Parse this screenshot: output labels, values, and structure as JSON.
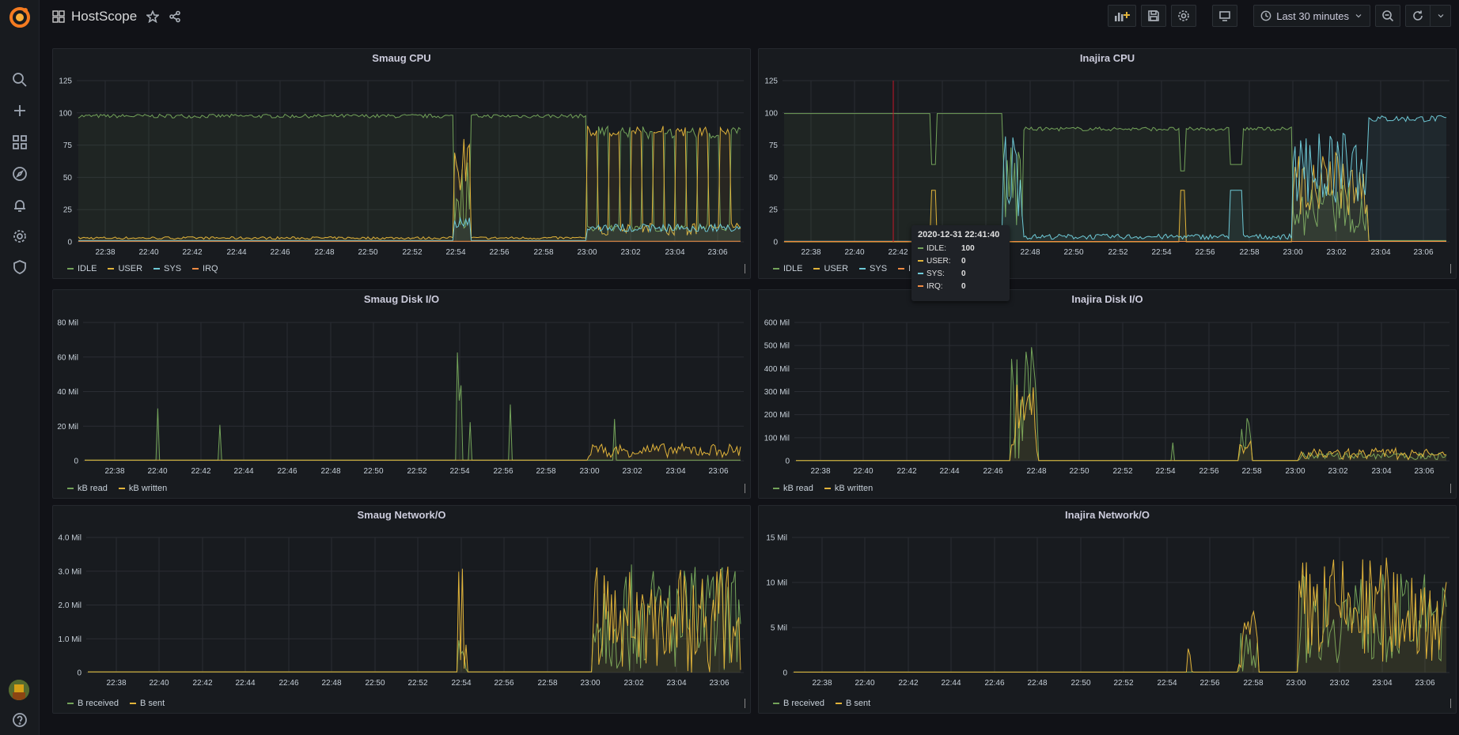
{
  "app": {
    "title": "HostScope"
  },
  "toolbar": {
    "time_range": "Last 30 minutes"
  },
  "colors": {
    "green": "#73a35a",
    "yellow": "#e0b33a",
    "blue": "#6ec9d6",
    "orange": "#f08b43",
    "grid": "#2a2d33",
    "axis": "#8e8e99"
  },
  "panels": [
    {
      "title": "Smaug CPU",
      "y_ticks": [
        "125",
        "100",
        "75",
        "50",
        "25",
        "0"
      ],
      "legend": [
        {
          "name": "IDLE",
          "color": "#73a35a"
        },
        {
          "name": "USER",
          "color": "#e0b33a"
        },
        {
          "name": "SYS",
          "color": "#6ec9d6"
        },
        {
          "name": "IRQ",
          "color": "#f08b43"
        }
      ]
    },
    {
      "title": "Inajira CPU",
      "y_ticks": [
        "125",
        "100",
        "75",
        "50",
        "25",
        "0"
      ],
      "legend": [
        {
          "name": "IDLE",
          "color": "#73a35a"
        },
        {
          "name": "USER",
          "color": "#e0b33a"
        },
        {
          "name": "SYS",
          "color": "#6ec9d6"
        },
        {
          "name": "IRQ",
          "color": "#f08b43"
        }
      ]
    },
    {
      "title": "Smaug Disk I/O",
      "y_ticks": [
        "80 Mil",
        "60 Mil",
        "40 Mil",
        "20 Mil",
        "0"
      ],
      "legend": [
        {
          "name": "kB read",
          "color": "#73a35a"
        },
        {
          "name": "kB written",
          "color": "#e0b33a"
        }
      ]
    },
    {
      "title": "Inajira Disk I/O",
      "y_ticks": [
        "600 Mil",
        "500 Mil",
        "400 Mil",
        "300 Mil",
        "200 Mil",
        "100 Mil",
        "0"
      ],
      "legend": [
        {
          "name": "kB read",
          "color": "#73a35a"
        },
        {
          "name": "kB written",
          "color": "#e0b33a"
        }
      ]
    },
    {
      "title": "Smaug Network/O",
      "y_ticks": [
        "4.0 Mil",
        "3.0 Mil",
        "2.0 Mil",
        "1.0 Mil",
        "0"
      ],
      "legend": [
        {
          "name": "B received",
          "color": "#73a35a"
        },
        {
          "name": "B sent",
          "color": "#e0b33a"
        }
      ]
    },
    {
      "title": "Inajira Network/O",
      "y_ticks": [
        "15 Mil",
        "10 Mil",
        "5 Mil",
        "0"
      ],
      "legend": [
        {
          "name": "B received",
          "color": "#73a35a"
        },
        {
          "name": "B sent",
          "color": "#e0b33a"
        }
      ]
    }
  ],
  "x_ticks": [
    "22:38",
    "22:40",
    "22:42",
    "22:44",
    "22:46",
    "22:48",
    "22:50",
    "22:52",
    "22:54",
    "22:56",
    "22:58",
    "23:00",
    "23:02",
    "23:04",
    "23:06"
  ],
  "tooltip": {
    "time": "2020-12-31 22:41:40",
    "rows": [
      {
        "name": "IDLE:",
        "value": "100",
        "color": "#73a35a"
      },
      {
        "name": "USER:",
        "value": "0",
        "color": "#e0b33a"
      },
      {
        "name": "SYS:",
        "value": "0",
        "color": "#6ec9d6"
      },
      {
        "name": "IRQ:",
        "value": "0",
        "color": "#f08b43"
      }
    ]
  }
}
